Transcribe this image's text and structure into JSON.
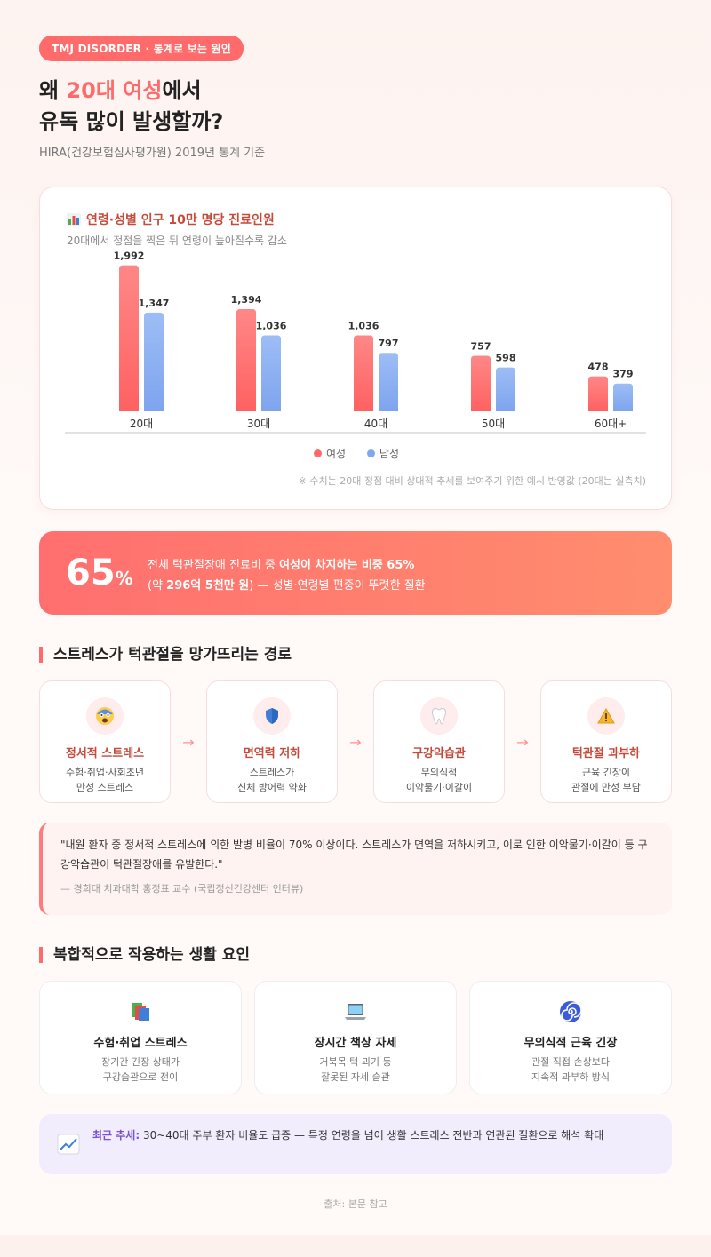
{
  "header": {
    "tag": "TMJ DISORDER · 통계로 보는 원인",
    "title_prefix": "왜 ",
    "title_accent": "20대 여성",
    "title_suffix": "에서",
    "title_line2": "유독 많이 발생할까?",
    "subtitle": "HIRA(건강보험심사평가원) 2019년 통계 기준"
  },
  "chart_card": {
    "title": "연령·성별 인구 10만 명당 진료인원",
    "subtitle": "20대에서 정점을 찍은 뒤 연령이 높아질수록 감소",
    "note": "※ 수치는 20대 정점 대비 상대적 추세를 보여주기 위한 예시 반영값 (20대는 실측치)"
  },
  "chart_data": {
    "type": "bar",
    "categories": [
      "20대",
      "30대",
      "40대",
      "50대",
      "60대+"
    ],
    "series": [
      {
        "name": "여성",
        "values": [
          1992,
          1394,
          1036,
          757,
          478
        ],
        "color": "#ff6b6b"
      },
      {
        "name": "남성",
        "values": [
          1347,
          1036,
          797,
          598,
          379
        ],
        "color": "#7ea8f2"
      }
    ],
    "value_labels": {
      "여성": [
        "1,992",
        "1,394",
        "1,036",
        "757",
        "478"
      ],
      "남성": [
        "1,347",
        "1,036",
        "797",
        "598",
        "379"
      ]
    },
    "ylim": [
      0,
      2000
    ],
    "grid": false,
    "legend": "bottom-center"
  },
  "stat": {
    "number": "65",
    "unit": "%",
    "line1_prefix": "전체 턱관절장애 진료비 중 ",
    "line1_bold": "여성이 차지하는 비중 65%",
    "line2_prefix": "(약 ",
    "line2_bold": "296억 5천만 원",
    "line2_suffix": ") — 성별·연령별 편중이 뚜렷한 질환"
  },
  "path_section": {
    "heading": "스트레스가 턱관절을 망가뜨리는 경로",
    "steps": [
      {
        "title": "정서적 스트레스",
        "desc1": "수험·취업·사회초년",
        "desc2": "만성 스트레스",
        "icon": "anxious-face-icon"
      },
      {
        "title": "면역력 저하",
        "desc1": "스트레스가",
        "desc2": "신체 방어력 약화",
        "icon": "shield-icon"
      },
      {
        "title": "구강악습관",
        "desc1": "무의식적",
        "desc2": "이악물기·이갈이",
        "icon": "tooth-icon"
      },
      {
        "title": "턱관절 과부하",
        "desc1": "근육 긴장이",
        "desc2": "관절에 만성 부담",
        "icon": "warning-icon"
      }
    ],
    "arrow": "→"
  },
  "quote": {
    "text": "\"내원 환자 중 정서적 스트레스에 의한 발병 비율이 70% 이상이다. 스트레스가 면역을 저하시키고, 이로 인한 이악물기·이갈이 등 구강악습관이 턱관절장애를 유발한다.\"",
    "author": "— 경희대 치과대학 홍정표 교수 (국립정신건강센터 인터뷰)"
  },
  "factors_section": {
    "heading": "복합적으로 작용하는 생활 요인",
    "factors": [
      {
        "title": "수험·취업 스트레스",
        "desc1": "장기간 긴장 상태가",
        "desc2": "구강습관으로 전이",
        "icon": "books-icon"
      },
      {
        "title": "장시간 책상 자세",
        "desc1": "거북목·턱 괴기 등",
        "desc2": "잘못된 자세 습관",
        "icon": "laptop-icon"
      },
      {
        "title": "무의식적 근육 긴장",
        "desc1": "관절 직접 손상보다",
        "desc2": "지속적 과부하 방식",
        "icon": "spiral-icon"
      }
    ]
  },
  "trend": {
    "label": "최근 추세:",
    "text": " 30~40대 주부 환자 비율도 급증 — 특정 연령을 넘어 생활 스트레스 전반과 연관된 질환으로 해석 확대"
  },
  "source": "출처: 본문 참고",
  "colors": {
    "accent": "#ff6b6b",
    "male": "#7ea8f2",
    "purple": "#7b4fd6"
  }
}
